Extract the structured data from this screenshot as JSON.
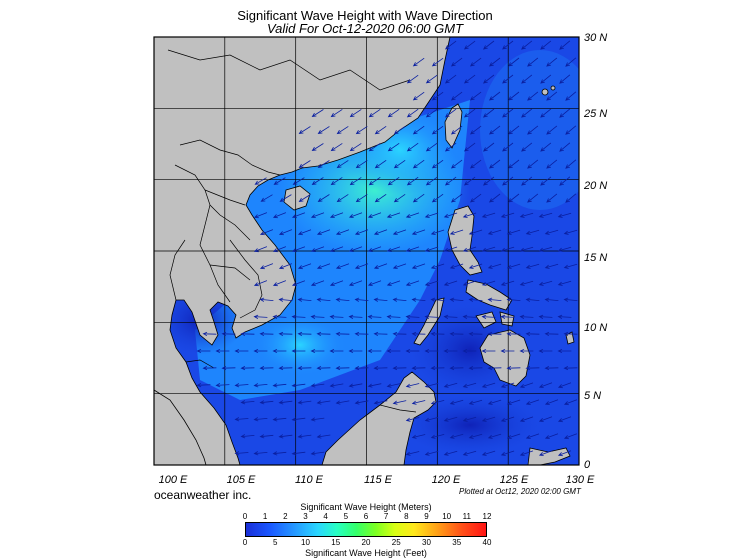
{
  "title": "Significant Wave Height with Wave Direction",
  "subtitle": "Valid For Oct-12-2020 06:00 GMT",
  "longitude_labels": [
    "100 E",
    "105 E",
    "110 E",
    "115 E",
    "120 E",
    "125 E",
    "130 E"
  ],
  "latitude_labels": [
    "30 N",
    "25 N",
    "20 N",
    "15 N",
    "10 N",
    "5 N",
    "0"
  ],
  "brand": "oceanweather inc.",
  "plotted_at": "Plotted at Oct12, 2020 02:00 GMT",
  "colorbar": {
    "meters_title": "Significant Wave Height (Meters)",
    "meters_ticks": [
      "0",
      "1",
      "2",
      "3",
      "4",
      "5",
      "6",
      "7",
      "8",
      "9",
      "10",
      "11",
      "12"
    ],
    "feet_title": "Significant Wave Height (Feet)",
    "feet_ticks": [
      "0",
      "5",
      "10",
      "15",
      "20",
      "25",
      "30",
      "35",
      "40"
    ]
  },
  "colors": {
    "land": "#c0c0c0",
    "low_wave": "#1535d6",
    "mid_wave": "#1f86ff",
    "high_wave": "#26d8ff",
    "arrow": "#0a1fa0"
  }
}
